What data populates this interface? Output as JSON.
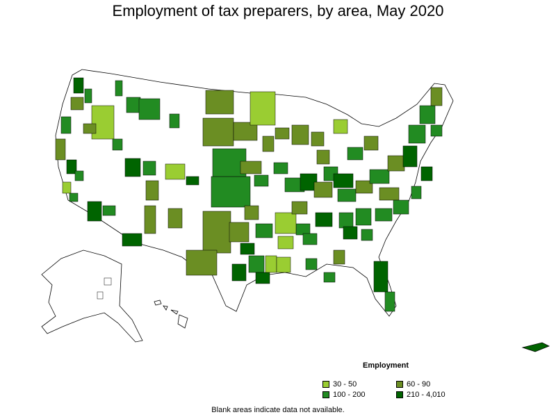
{
  "title": "Employment of tax preparers, by area, May 2020",
  "legend": {
    "title": "Employment",
    "items": [
      {
        "label": "30 - 50",
        "color": "#9acd32"
      },
      {
        "label": "60 - 90",
        "color": "#6b8e23"
      },
      {
        "label": "100 - 200",
        "color": "#228b22"
      },
      {
        "label": "210 - 4,010",
        "color": "#006400"
      }
    ]
  },
  "footnote": "Blank areas indicate data not available.",
  "colors": {
    "blank": "#ffffff",
    "border": "#000000"
  }
}
